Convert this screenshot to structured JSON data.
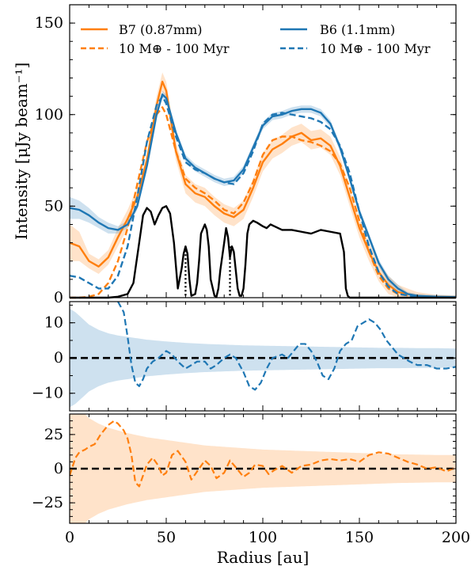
{
  "colors": {
    "b7": "#ff7f0e",
    "b6": "#1f77b4",
    "model_profile": "#000000",
    "zero_line": "#000000"
  },
  "chart_data": [
    {
      "panel": "intensity profiles",
      "type": "line",
      "xlabel": "Radius [au]",
      "ylabel": "Intensity [μJy beam⁻¹]",
      "xlim": [
        0,
        200
      ],
      "ylim": [
        0,
        160
      ],
      "xticks": [
        "0",
        "50",
        "100",
        "150",
        "200"
      ],
      "yticks": [
        "0",
        "50",
        "100",
        "150"
      ],
      "legend_position": "top",
      "legend": [
        {
          "label": "B7 (0.87mm)",
          "color": "#ff7f0e",
          "style": "solid"
        },
        {
          "label": "10 M⊕ - 100 Myr",
          "color": "#ff7f0e",
          "style": "dashed"
        },
        {
          "label": "B6 (1.1mm)",
          "color": "#1f77b4",
          "style": "solid"
        },
        {
          "label": "10 M⊕ - 100 Myr",
          "color": "#1f77b4",
          "style": "dashed"
        }
      ],
      "series": [
        {
          "name": "B7 (0.87mm)",
          "style": "solid",
          "color": "#ff7f0e",
          "x": [
            0,
            5,
            10,
            15,
            20,
            25,
            30,
            35,
            40,
            45,
            48,
            50,
            55,
            60,
            65,
            70,
            75,
            80,
            85,
            90,
            95,
            100,
            105,
            110,
            115,
            120,
            125,
            130,
            135,
            140,
            145,
            150,
            155,
            160,
            165,
            170,
            175,
            180,
            190,
            200
          ],
          "y": [
            30,
            28,
            20,
            17,
            22,
            33,
            43,
            55,
            75,
            105,
            118,
            113,
            80,
            62,
            57,
            55,
            50,
            46,
            44,
            48,
            60,
            74,
            81,
            84,
            88,
            90,
            86,
            87,
            83,
            72,
            55,
            38,
            25,
            14,
            7,
            3,
            2,
            1,
            0.5,
            0.3
          ],
          "band": [
            10,
            8,
            4,
            4,
            4,
            5,
            5,
            5,
            4,
            5,
            5,
            5,
            5,
            5,
            5,
            5,
            5,
            5,
            5,
            5,
            5,
            5,
            5,
            5,
            5,
            5,
            5,
            5,
            5,
            5,
            5,
            5,
            5,
            5,
            5,
            4,
            3,
            2,
            1,
            1
          ]
        },
        {
          "name": "10 M⊕ - 100 Myr",
          "style": "dashed",
          "color": "#ff7f0e",
          "x": [
            0,
            5,
            10,
            15,
            20,
            25,
            30,
            35,
            40,
            45,
            48,
            50,
            55,
            60,
            65,
            70,
            75,
            80,
            85,
            90,
            95,
            100,
            105,
            110,
            115,
            120,
            125,
            130,
            135,
            140,
            145,
            150,
            155,
            160,
            165,
            170,
            180,
            200
          ],
          "y": [
            0,
            0,
            0.5,
            2,
            8,
            20,
            38,
            62,
            85,
            100,
            104,
            100,
            80,
            65,
            60,
            57,
            53,
            48,
            46,
            52,
            63,
            78,
            86,
            88,
            88,
            86,
            85,
            83,
            80,
            73,
            60,
            42,
            25,
            12,
            5,
            2,
            0.5,
            0
          ],
          "band": null
        },
        {
          "name": "B6 (1.1mm)",
          "style": "solid",
          "color": "#1f77b4",
          "x": [
            0,
            5,
            10,
            15,
            20,
            25,
            30,
            35,
            40,
            45,
            48,
            50,
            55,
            60,
            65,
            70,
            75,
            80,
            85,
            90,
            95,
            100,
            105,
            110,
            115,
            120,
            125,
            130,
            135,
            140,
            145,
            150,
            155,
            160,
            165,
            170,
            175,
            180,
            190,
            200
          ],
          "y": [
            49,
            48,
            45,
            41,
            38,
            37,
            40,
            50,
            72,
            100,
            111,
            109,
            90,
            76,
            71,
            68,
            65,
            63,
            64,
            70,
            82,
            94,
            99,
            100,
            102,
            103,
            103,
            101,
            95,
            82,
            65,
            47,
            33,
            19,
            10,
            5,
            2,
            1,
            0.5,
            0.3
          ],
          "band": [
            6,
            5,
            4,
            3,
            3,
            2,
            2,
            2,
            2,
            2,
            2,
            2,
            2,
            2,
            2,
            2,
            2,
            2,
            2,
            2,
            2,
            2,
            2,
            2,
            2,
            2,
            2,
            2,
            2,
            2,
            2,
            2,
            2,
            2,
            2,
            2,
            1,
            1,
            1,
            1
          ]
        },
        {
          "name": "10 M⊕ - 100 Myr",
          "style": "dashed",
          "color": "#1f77b4",
          "x": [
            0,
            5,
            10,
            15,
            20,
            25,
            30,
            35,
            40,
            45,
            48,
            50,
            55,
            60,
            65,
            70,
            75,
            80,
            85,
            90,
            95,
            100,
            105,
            110,
            115,
            120,
            125,
            130,
            135,
            140,
            145,
            150,
            155,
            160,
            165,
            170,
            180,
            200
          ],
          "y": [
            12,
            11,
            8,
            5,
            5,
            12,
            28,
            55,
            85,
            105,
            110,
            106,
            88,
            74,
            70,
            68,
            65,
            63,
            62,
            68,
            80,
            95,
            100,
            101,
            100,
            99,
            98,
            96,
            92,
            83,
            68,
            47,
            28,
            14,
            6,
            2,
            0.5,
            0
          ],
          "band": null
        },
        {
          "name": "",
          "style": "solid",
          "color": "#000000",
          "x": [
            0,
            10,
            20,
            25,
            30,
            33,
            36,
            38,
            40,
            42,
            44,
            46,
            48,
            50,
            52,
            54,
            56,
            58,
            59,
            60,
            61,
            62,
            63,
            65,
            66,
            67,
            68,
            70,
            71,
            72,
            73,
            75,
            76,
            77,
            78,
            80,
            81,
            82,
            83,
            84,
            85,
            87,
            88,
            89,
            90,
            91,
            92,
            93,
            95,
            97,
            100,
            102,
            104,
            106,
            110,
            115,
            120,
            125,
            130,
            135,
            140,
            142,
            143,
            144,
            145,
            147,
            150,
            200
          ],
          "y": [
            0,
            0,
            0,
            0.5,
            2,
            8,
            30,
            45,
            49,
            47,
            40,
            45,
            49,
            50,
            46,
            30,
            5,
            16,
            24,
            28,
            24,
            10,
            1,
            2,
            8,
            20,
            35,
            40,
            37,
            28,
            10,
            1,
            0.5,
            5,
            15,
            30,
            38,
            33,
            22,
            28,
            25,
            5,
            1,
            1,
            5,
            18,
            35,
            40,
            42,
            41,
            39,
            38,
            40,
            39,
            37,
            37,
            36,
            35,
            37,
            36,
            35,
            25,
            5,
            1,
            0,
            0,
            0,
            0
          ],
          "band": null
        }
      ],
      "markers": [
        {
          "x": 60,
          "y_top": 28,
          "style": "dotted",
          "color": "#000000"
        },
        {
          "x": 83,
          "y_top": 28,
          "style": "dotted",
          "color": "#000000"
        }
      ]
    },
    {
      "panel": "B6 residuals",
      "type": "line",
      "xlim": [
        0,
        200
      ],
      "ylim": [
        -15,
        16
      ],
      "yticks": [
        "−10",
        "0",
        "10"
      ],
      "zero_line": 0,
      "band_halfwidth": {
        "x": [
          0,
          3,
          5,
          10,
          15,
          20,
          25,
          30,
          40,
          50,
          60,
          70,
          80,
          90,
          100,
          110,
          120,
          130,
          140,
          150,
          160,
          170,
          180,
          190,
          200
        ],
        "y": [
          14,
          13,
          12,
          9.5,
          8,
          7,
          6.4,
          6,
          5.2,
          4.7,
          4.3,
          4,
          3.8,
          3.6,
          3.5,
          3.4,
          3.3,
          3.2,
          3.1,
          3,
          2.9,
          2.9,
          2.8,
          2.8,
          2.7
        ]
      },
      "series": [
        {
          "name": "",
          "style": "dashed",
          "color": "#1f77b4",
          "x": [
            25,
            28,
            30,
            32,
            34,
            36,
            38,
            40,
            43,
            46,
            48,
            50,
            53,
            56,
            60,
            63,
            66,
            70,
            73,
            76,
            80,
            83,
            86,
            90,
            93,
            96,
            99,
            102,
            105,
            110,
            113,
            116,
            119,
            122,
            125,
            128,
            131,
            134,
            137,
            140,
            143,
            146,
            149,
            152,
            155,
            158,
            161,
            164,
            167,
            170,
            173,
            176,
            180,
            185,
            190,
            195,
            200
          ],
          "y": [
            16,
            13,
            6,
            -2,
            -7,
            -8,
            -6,
            -3,
            -1,
            0,
            1,
            2,
            1,
            -1,
            -3,
            -2,
            -1,
            -1,
            -3,
            -2,
            0,
            1,
            0,
            -4,
            -8,
            -9,
            -7,
            -3,
            0,
            1,
            0,
            2,
            4,
            4,
            2,
            -1,
            -5,
            -6,
            -3,
            2,
            4,
            5,
            9,
            10,
            11,
            10,
            8,
            5,
            3,
            1,
            0,
            -1,
            -2,
            -2,
            -3,
            -3,
            -2.5
          ]
        }
      ]
    },
    {
      "panel": "B7 residuals",
      "type": "line",
      "xlim": [
        0,
        200
      ],
      "ylim": [
        -40,
        40
      ],
      "yticks": [
        "−25",
        "0",
        "25"
      ],
      "zero_line": 0,
      "band_halfwidth": {
        "x": [
          0,
          5,
          8,
          10,
          15,
          20,
          25,
          30,
          40,
          50,
          60,
          70,
          80,
          90,
          100,
          110,
          120,
          130,
          140,
          150,
          160,
          170,
          180,
          190,
          200
        ],
        "y": [
          40,
          40,
          40,
          37,
          33,
          30,
          28,
          26,
          23,
          21,
          19,
          17,
          16,
          15,
          14,
          13.5,
          13,
          12.5,
          12,
          11.5,
          11,
          10.5,
          10.3,
          10,
          10
        ]
      },
      "series": [
        {
          "name": "",
          "style": "dashed",
          "color": "#ff7f0e",
          "x": [
            0,
            3,
            5,
            8,
            10,
            13,
            16,
            20,
            23,
            25,
            28,
            30,
            32,
            34,
            36,
            38,
            40,
            43,
            46,
            48,
            50,
            53,
            56,
            60,
            63,
            66,
            70,
            73,
            76,
            80,
            83,
            86,
            90,
            93,
            96,
            100,
            103,
            106,
            110,
            115,
            120,
            125,
            130,
            135,
            140,
            145,
            150,
            155,
            160,
            165,
            170,
            175,
            180,
            185,
            190,
            195,
            200
          ],
          "y": [
            -5,
            8,
            12,
            14,
            16,
            18,
            25,
            32,
            35,
            33,
            28,
            22,
            10,
            -10,
            -13,
            -5,
            3,
            8,
            2,
            -5,
            -3,
            10,
            13,
            5,
            -8,
            -2,
            6,
            2,
            -7,
            -3,
            6,
            1,
            -6,
            -3,
            3,
            2,
            -4,
            -1,
            2,
            -3,
            2,
            3,
            6,
            7,
            6,
            7,
            5,
            10,
            12,
            11,
            8,
            5,
            3,
            0,
            1,
            -2,
            1
          ]
        }
      ]
    }
  ]
}
